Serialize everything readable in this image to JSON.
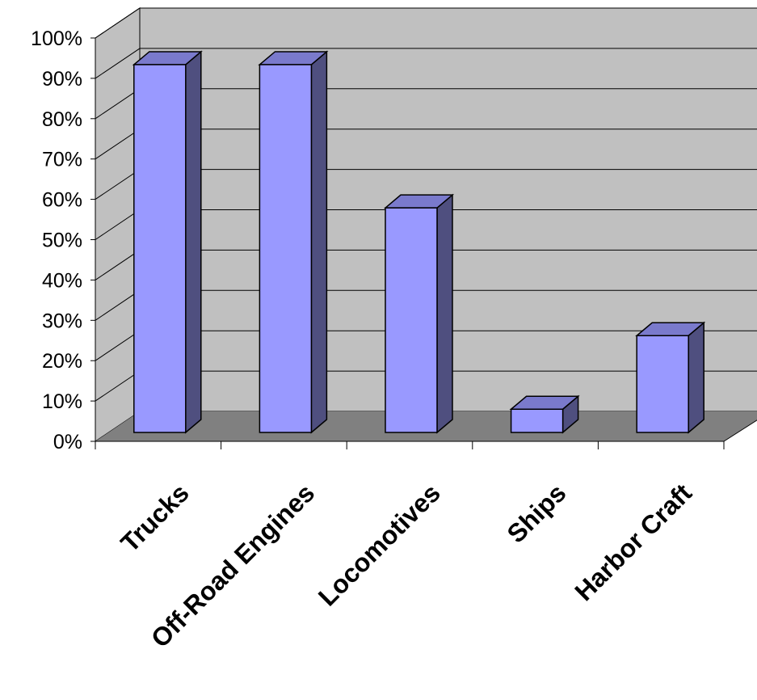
{
  "chart_data": {
    "type": "bar",
    "title": "",
    "xlabel": "",
    "ylabel": "",
    "categories": [
      "Trucks",
      "Off-Road Engines",
      "Locomotives",
      "Ships",
      "Harbor Craft"
    ],
    "values": [
      95,
      95,
      58,
      6,
      25
    ],
    "ylim": [
      0,
      100
    ],
    "yticks": [
      "0%",
      "10%",
      "20%",
      "30%",
      "40%",
      "50%",
      "60%",
      "70%",
      "80%",
      "90%",
      "100%"
    ],
    "grid": true,
    "style": "3d-column",
    "colors": {
      "bar_front": "#9999ff",
      "bar_side": "#4f4f7f",
      "bar_top": "#7a7acc",
      "wall": "#c0c0c0",
      "floor": "#808080"
    }
  }
}
